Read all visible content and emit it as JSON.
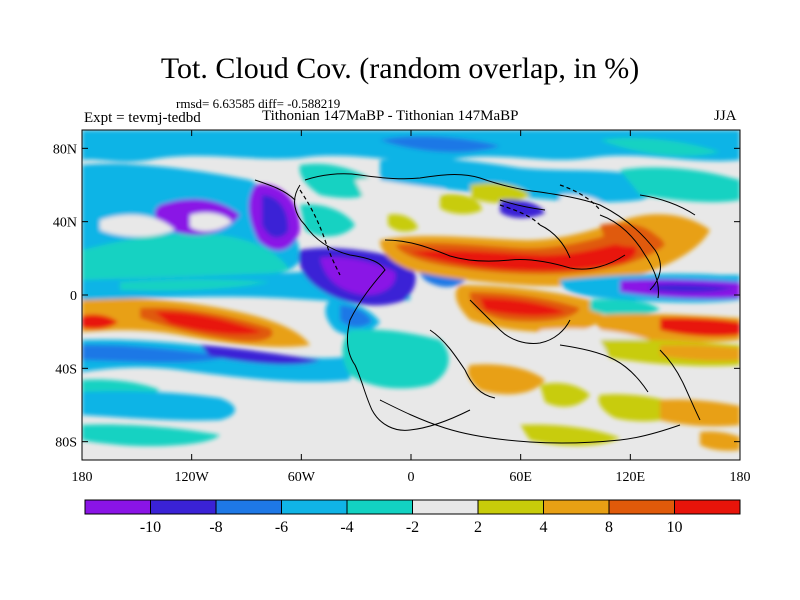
{
  "title": "Tot. Cloud Cov. (random overlap, in %)",
  "stats": "rmsd= 6.63585 diff= -0.588219",
  "expt": "Expt = tevmj-tedbd",
  "subtitle": "Tithonian 147MaBP - Tithonian 147MaBP",
  "season": "JJA",
  "x_ticks": [
    {
      "value": -180,
      "label": "180"
    },
    {
      "value": -120,
      "label": "120W"
    },
    {
      "value": -60,
      "label": "60W"
    },
    {
      "value": 0,
      "label": "0"
    },
    {
      "value": 60,
      "label": "60E"
    },
    {
      "value": 120,
      "label": "120E"
    },
    {
      "value": 180,
      "label": "180"
    }
  ],
  "y_ticks": [
    {
      "value": 80,
      "label": "80N"
    },
    {
      "value": 40,
      "label": "40N"
    },
    {
      "value": 0,
      "label": "0"
    },
    {
      "value": -40,
      "label": "40S"
    },
    {
      "value": -80,
      "label": "80S"
    }
  ],
  "colorbar": {
    "levels": [
      "-10",
      "-8",
      "-6",
      "-4",
      "-2",
      "2",
      "4",
      "8",
      "10"
    ],
    "colors": [
      "#8a14e6",
      "#3a22d6",
      "#1e78e6",
      "#10b4e6",
      "#12d2c2",
      "#e8e8e8",
      "#c8cc0a",
      "#e8a014",
      "#e05a0a",
      "#e8140a"
    ]
  },
  "colors": {
    "land_outline": "#000000",
    "neutral": "#e8e8e8"
  }
}
